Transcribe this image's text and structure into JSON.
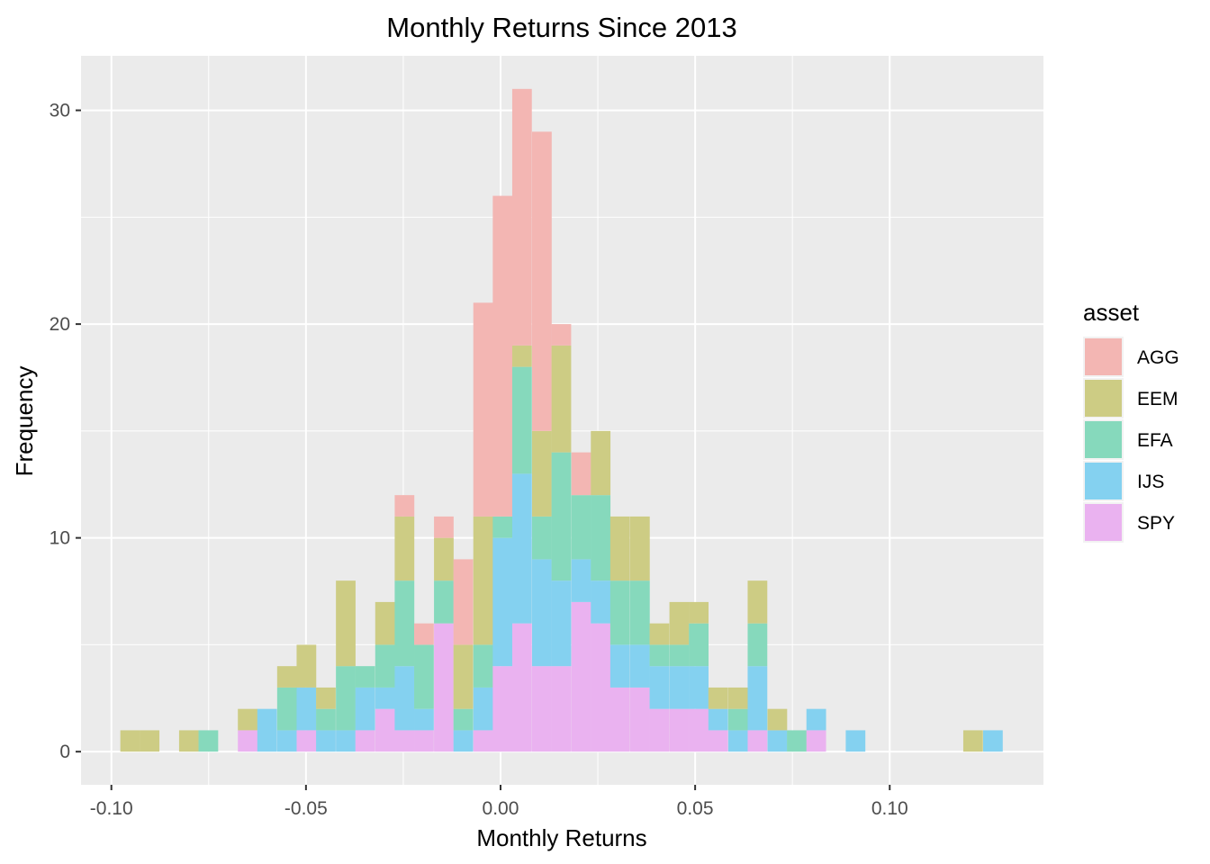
{
  "chart_data": {
    "type": "histogram",
    "stacked": true,
    "title": "Monthly Returns Since 2013",
    "xlabel": "Monthly Returns",
    "ylabel": "Frequency",
    "xlim": [
      -0.1078,
      0.1395
    ],
    "ylim": [
      -1.55,
      32.55
    ],
    "x_ticks": [
      -0.1,
      -0.05,
      0.0,
      0.05,
      0.1
    ],
    "x_tick_labels": [
      "-0.10",
      "-0.05",
      "0.00",
      "0.05",
      "0.10"
    ],
    "y_ticks": [
      0,
      10,
      20,
      30
    ],
    "y_tick_labels": [
      "0",
      "10",
      "20",
      "30"
    ],
    "grid": true,
    "legend": {
      "title": "asset",
      "position": "right"
    },
    "bin_width": 0.00504,
    "bins": [
      {
        "x0": -0.0977,
        "SPY": 0,
        "IJS": 0,
        "EFA": 0,
        "EEM": 1,
        "AGG": 0
      },
      {
        "x0": -0.0927,
        "SPY": 0,
        "IJS": 0,
        "EFA": 0,
        "EEM": 1,
        "AGG": 0
      },
      {
        "x0": -0.0826,
        "SPY": 0,
        "IJS": 0,
        "EFA": 0,
        "EEM": 1,
        "AGG": 0
      },
      {
        "x0": -0.0776,
        "SPY": 0,
        "IJS": 0,
        "EFA": 1,
        "EEM": 0,
        "AGG": 0
      },
      {
        "x0": -0.0675,
        "SPY": 1,
        "IJS": 0,
        "EFA": 0,
        "EEM": 1,
        "AGG": 0
      },
      {
        "x0": -0.0625,
        "SPY": 0,
        "IJS": 2,
        "EFA": 0,
        "EEM": 0,
        "AGG": 0
      },
      {
        "x0": -0.0574,
        "SPY": 0,
        "IJS": 1,
        "EFA": 2,
        "EEM": 1,
        "AGG": 0
      },
      {
        "x0": -0.0524,
        "SPY": 1,
        "IJS": 2,
        "EFA": 0,
        "EEM": 2,
        "AGG": 0
      },
      {
        "x0": -0.0474,
        "SPY": 0,
        "IJS": 1,
        "EFA": 1,
        "EEM": 1,
        "AGG": 0
      },
      {
        "x0": -0.0423,
        "SPY": 0,
        "IJS": 1,
        "EFA": 3,
        "EEM": 4,
        "AGG": 0
      },
      {
        "x0": -0.0373,
        "SPY": 1,
        "IJS": 2,
        "EFA": 1,
        "EEM": 0,
        "AGG": 0
      },
      {
        "x0": -0.0322,
        "SPY": 2,
        "IJS": 1,
        "EFA": 2,
        "EEM": 2,
        "AGG": 0
      },
      {
        "x0": -0.0272,
        "SPY": 1,
        "IJS": 3,
        "EFA": 4,
        "EEM": 3,
        "AGG": 1
      },
      {
        "x0": -0.0222,
        "SPY": 1,
        "IJS": 1,
        "EFA": 3,
        "EEM": 0,
        "AGG": 1
      },
      {
        "x0": -0.0171,
        "SPY": 6,
        "IJS": 0,
        "EFA": 2,
        "EEM": 2,
        "AGG": 1
      },
      {
        "x0": -0.0121,
        "SPY": 0,
        "IJS": 1,
        "EFA": 1,
        "EEM": 3,
        "AGG": 4
      },
      {
        "x0": -0.007,
        "SPY": 1,
        "IJS": 2,
        "EFA": 2,
        "EEM": 6,
        "AGG": 10
      },
      {
        "x0": -0.002,
        "SPY": 4,
        "IJS": 6,
        "EFA": 1,
        "EEM": 0,
        "AGG": 15
      },
      {
        "x0": 0.003,
        "SPY": 6,
        "IJS": 7,
        "EFA": 5,
        "EEM": 1,
        "AGG": 12
      },
      {
        "x0": 0.0081,
        "SPY": 4,
        "IJS": 5,
        "EFA": 2,
        "EEM": 4,
        "AGG": 14
      },
      {
        "x0": 0.0131,
        "SPY": 4,
        "IJS": 4,
        "EFA": 6,
        "EEM": 5,
        "AGG": 1
      },
      {
        "x0": 0.0182,
        "SPY": 7,
        "IJS": 2,
        "EFA": 3,
        "EEM": 0,
        "AGG": 2
      },
      {
        "x0": 0.0232,
        "SPY": 6,
        "IJS": 2,
        "EFA": 4,
        "EEM": 3,
        "AGG": 0
      },
      {
        "x0": 0.0282,
        "SPY": 3,
        "IJS": 2,
        "EFA": 3,
        "EEM": 3,
        "AGG": 0
      },
      {
        "x0": 0.0333,
        "SPY": 3,
        "IJS": 2,
        "EFA": 3,
        "EEM": 3,
        "AGG": 0
      },
      {
        "x0": 0.0383,
        "SPY": 2,
        "IJS": 2,
        "EFA": 1,
        "EEM": 1,
        "AGG": 0
      },
      {
        "x0": 0.0434,
        "SPY": 2,
        "IJS": 2,
        "EFA": 1,
        "EEM": 2,
        "AGG": 0
      },
      {
        "x0": 0.0484,
        "SPY": 2,
        "IJS": 2,
        "EFA": 2,
        "EEM": 1,
        "AGG": 0
      },
      {
        "x0": 0.0534,
        "SPY": 1,
        "IJS": 1,
        "EFA": 0,
        "EEM": 1,
        "AGG": 0
      },
      {
        "x0": 0.0585,
        "SPY": 0,
        "IJS": 1,
        "EFA": 1,
        "EEM": 1,
        "AGG": 0
      },
      {
        "x0": 0.0635,
        "SPY": 1,
        "IJS": 3,
        "EFA": 2,
        "EEM": 2,
        "AGG": 0
      },
      {
        "x0": 0.0686,
        "SPY": 0,
        "IJS": 1,
        "EFA": 0,
        "EEM": 1,
        "AGG": 0
      },
      {
        "x0": 0.0736,
        "SPY": 0,
        "IJS": 0,
        "EFA": 1,
        "EEM": 0,
        "AGG": 0
      },
      {
        "x0": 0.0786,
        "SPY": 1,
        "IJS": 1,
        "EFA": 0,
        "EEM": 0,
        "AGG": 0
      },
      {
        "x0": 0.0887,
        "SPY": 0,
        "IJS": 1,
        "EFA": 0,
        "EEM": 0,
        "AGG": 0
      },
      {
        "x0": 0.1189,
        "SPY": 0,
        "IJS": 0,
        "EFA": 0,
        "EEM": 1,
        "AGG": 0
      },
      {
        "x0": 0.124,
        "SPY": 0,
        "IJS": 1,
        "EFA": 0,
        "EEM": 0,
        "AGG": 0
      }
    ],
    "series": [
      {
        "name": "AGG",
        "color": "#f3b6b3"
      },
      {
        "name": "EEM",
        "color": "#cdcc84"
      },
      {
        "name": "EFA",
        "color": "#86d9bc"
      },
      {
        "name": "IJS",
        "color": "#84d1f0"
      },
      {
        "name": "SPY",
        "color": "#eab2f0"
      }
    ],
    "stack_order": [
      "SPY",
      "IJS",
      "EFA",
      "EEM",
      "AGG"
    ]
  }
}
